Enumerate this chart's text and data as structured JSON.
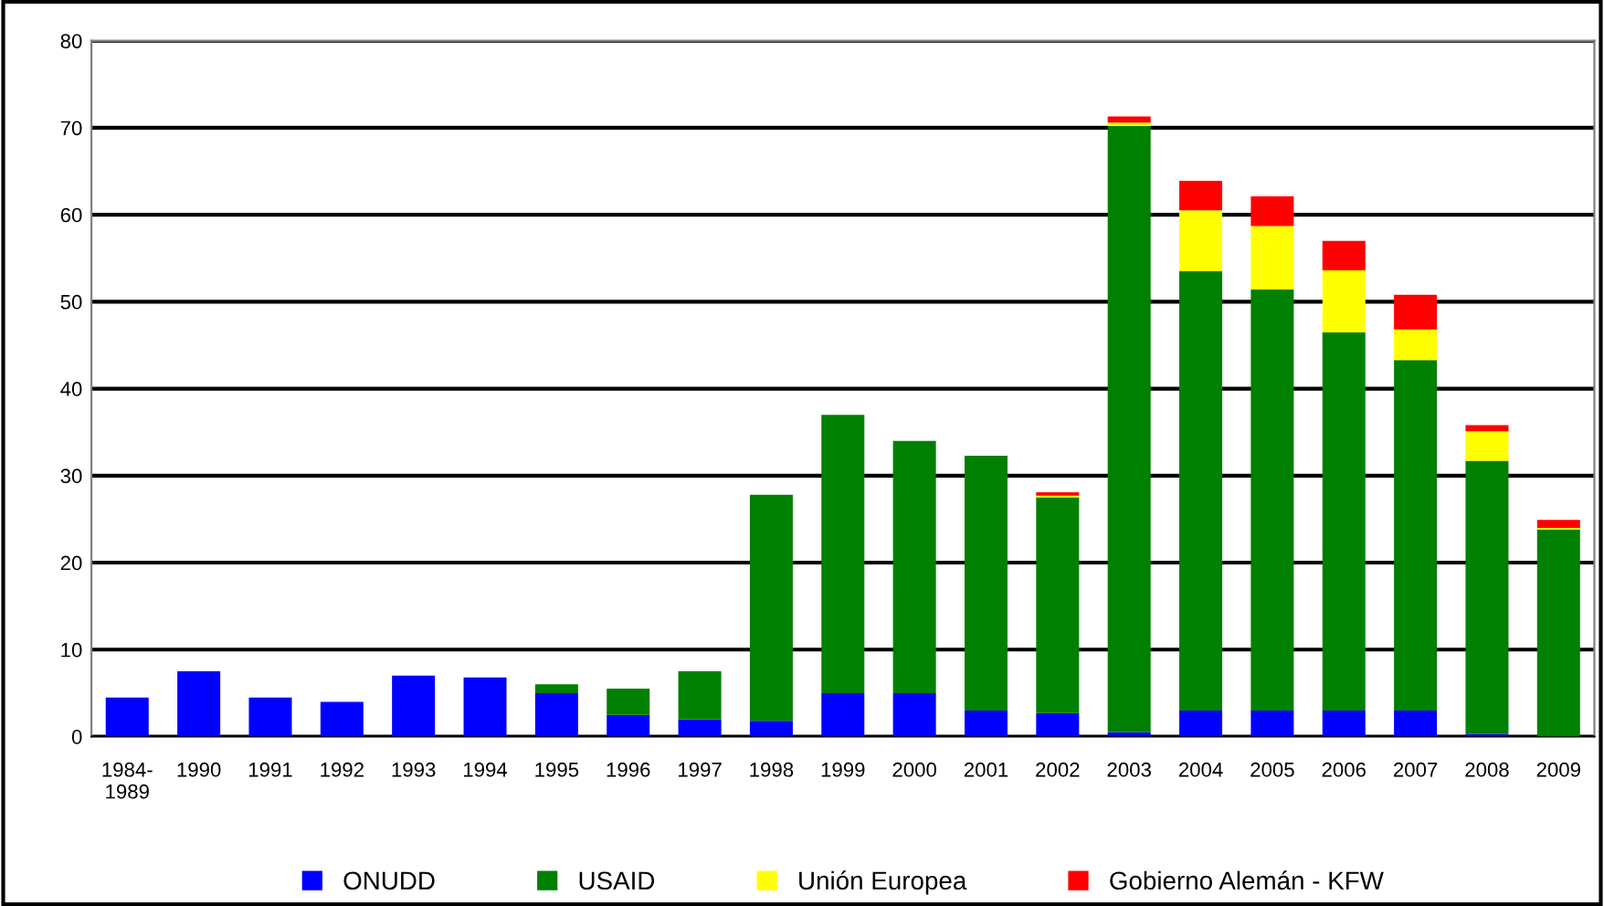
{
  "chart_data": {
    "type": "bar",
    "stacked": true,
    "categories": [
      "1984-\n1989",
      "1990",
      "1991",
      "1992",
      "1993",
      "1994",
      "1995",
      "1996",
      "1997",
      "1998",
      "1999",
      "2000",
      "2001",
      "2002",
      "2003",
      "2004",
      "2005",
      "2006",
      "2007",
      "2008",
      "2009"
    ],
    "series": [
      {
        "name": "ONUDD",
        "color": "#0000ff",
        "values": [
          4.5,
          7.5,
          4.5,
          4.0,
          7.0,
          6.8,
          5.0,
          2.5,
          2.0,
          1.8,
          5.0,
          5.0,
          3.0,
          2.7,
          0.5,
          3.0,
          3.0,
          3.0,
          3.0,
          0.3,
          0
        ]
      },
      {
        "name": "USAID",
        "color": "#008000",
        "values": [
          0,
          0,
          0,
          0,
          0,
          0,
          1.0,
          3.0,
          5.5,
          26.0,
          32.0,
          29.0,
          29.3,
          24.8,
          69.7,
          50.5,
          48.4,
          43.5,
          40.3,
          31.4,
          23.8
        ]
      },
      {
        "name": "Unión Europea",
        "color": "#ffff00",
        "values": [
          0,
          0,
          0,
          0,
          0,
          0,
          0,
          0,
          0,
          0,
          0,
          0,
          0,
          0.2,
          0.4,
          7.0,
          7.3,
          7.1,
          3.5,
          3.4,
          0.2
        ]
      },
      {
        "name": "Gobierno Alemán - KFW",
        "color": "#ff0000",
        "values": [
          0,
          0,
          0,
          0,
          0,
          0,
          0,
          0,
          0,
          0,
          0,
          0,
          0,
          0.4,
          0.7,
          3.4,
          3.4,
          3.4,
          4.0,
          0.7,
          0.9
        ]
      }
    ],
    "ylim": [
      0,
      80
    ],
    "yticks": [
      0,
      10,
      20,
      30,
      40,
      50,
      60,
      70,
      80
    ],
    "grid": "y",
    "legend": "bottom"
  }
}
